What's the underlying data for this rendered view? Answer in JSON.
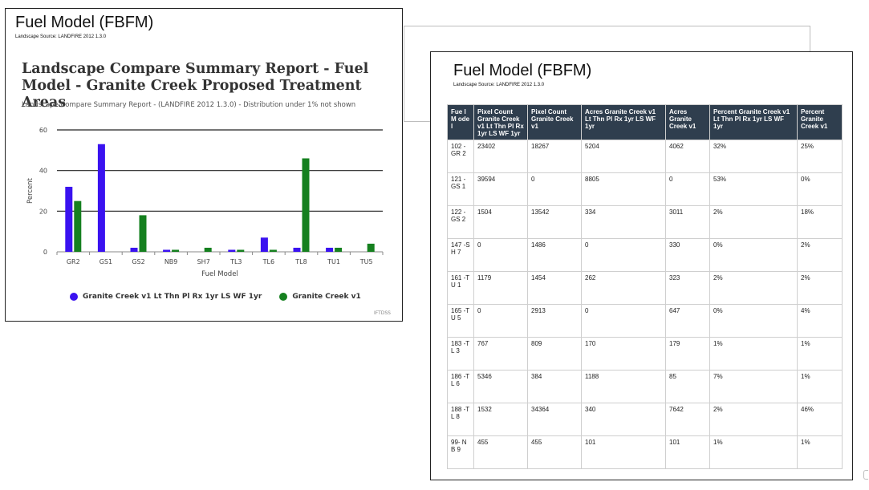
{
  "left_panel": {
    "title": "Fuel Model (FBFM)",
    "source": "Landscape Source: LANDFIRE 2012 1.3.0",
    "report_title": "Landscape Compare Summary Report - Fuel Model - Granite Creek Proposed Treatment Areas",
    "report_subtitle": "Landscape Compare Summary Report - (LANDFIRE 2012 1.3.0) - Distribution under 1% not shown",
    "watermark": "IFTDSS"
  },
  "chart_data": {
    "type": "bar",
    "categories": [
      "GR2",
      "GS1",
      "GS2",
      "NB9",
      "SH7",
      "TL3",
      "TL6",
      "TL8",
      "TU1",
      "TU5"
    ],
    "series": [
      {
        "name": "Granite Creek v1 Lt Thn Pl Rx 1yr LS WF 1yr",
        "color": "#3a12f0",
        "values": [
          32,
          53,
          2,
          1,
          0,
          1,
          7,
          2,
          2,
          0
        ]
      },
      {
        "name": "Granite Creek v1",
        "color": "#15801f",
        "values": [
          25,
          0,
          18,
          1,
          2,
          1,
          1,
          46,
          2,
          4
        ]
      }
    ],
    "xlabel": "Fuel Model",
    "ylabel": "Percent",
    "ylim": [
      0,
      60
    ],
    "yticks": [
      0,
      20,
      40,
      60
    ],
    "grid": true,
    "legend": "bottom"
  },
  "right_panel": {
    "title": "Fuel Model (FBFM)",
    "source": "Landscape Source: LANDFIRE 2012 1.3.0",
    "columns": [
      "Fue l M ode l",
      "Pixel Count Granite Creek v1 Lt Thn Pl Rx 1yr LS WF 1yr",
      "Pixel Count Granite Creek v1",
      "Acres Granite Creek v1 Lt Thn Pl Rx 1yr LS WF 1yr",
      "Acres Granite Creek v1",
      "Percent Granite Creek v1 Lt Thn Pl Rx 1yr LS WF 1yr",
      "Percent Granite Creek v1"
    ],
    "rows": [
      [
        "102 -GR 2",
        "23402",
        "18267",
        "5204",
        "4062",
        "32%",
        "25%"
      ],
      [
        "121 -GS 1",
        "39594",
        "0",
        "8805",
        "0",
        "53%",
        "0%"
      ],
      [
        "122 -GS 2",
        "1504",
        "13542",
        "334",
        "3011",
        "2%",
        "18%"
      ],
      [
        "147 -SH 7",
        "0",
        "1486",
        "0",
        "330",
        "0%",
        "2%"
      ],
      [
        "161 -TU 1",
        "1179",
        "1454",
        "262",
        "323",
        "2%",
        "2%"
      ],
      [
        "165 -TU 5",
        "0",
        "2913",
        "0",
        "647",
        "0%",
        "4%"
      ],
      [
        "183 -TL 3",
        "767",
        "809",
        "170",
        "179",
        "1%",
        "1%"
      ],
      [
        "186 -TL 6",
        "5346",
        "384",
        "1188",
        "85",
        "7%",
        "1%"
      ],
      [
        "188 -TL 8",
        "1532",
        "34364",
        "340",
        "7642",
        "2%",
        "46%"
      ],
      [
        "99- NB 9",
        "455",
        "455",
        "101",
        "101",
        "1%",
        "1%"
      ]
    ]
  }
}
